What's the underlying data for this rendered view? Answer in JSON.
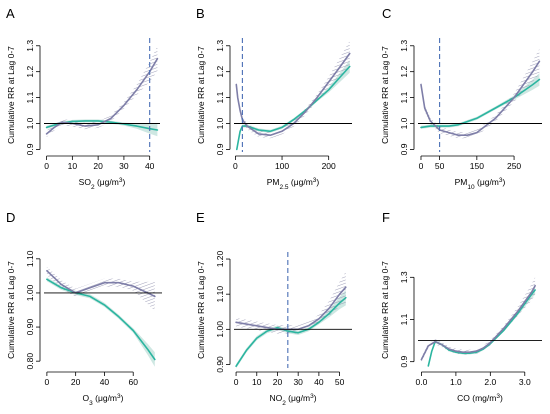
{
  "chart_data": [
    {
      "panel": "A",
      "type": "line",
      "xlabel": "SO",
      "xlabel_sub": "2",
      "xlabel_unit": " (μg/m",
      "ylabel": "Cumulative RR at Lag 0-7",
      "xlim": [
        -1,
        44
      ],
      "ylim": [
        0.89,
        1.33
      ],
      "xticks": [
        0,
        10,
        20,
        30,
        40
      ],
      "yticks": [
        0.9,
        1.0,
        1.1,
        1.2,
        1.3
      ],
      "reference_line": 1.0,
      "vline": 40,
      "series": [
        {
          "color": "#2bb5a0",
          "x": [
            0,
            5,
            10,
            15,
            20,
            25,
            30,
            35,
            40,
            43
          ],
          "y": [
            0.985,
            1.0,
            1.008,
            1.01,
            1.01,
            1.005,
            0.998,
            0.99,
            0.98,
            0.975
          ]
        },
        {
          "color": "#7e7ea8",
          "x": [
            0,
            3,
            6,
            10,
            15,
            20,
            25,
            30,
            35,
            40,
            43
          ],
          "y": [
            0.96,
            0.985,
            1.005,
            1.0,
            0.99,
            0.995,
            1.02,
            1.07,
            1.13,
            1.2,
            1.25
          ]
        }
      ]
    },
    {
      "panel": "B",
      "type": "line",
      "xlabel": "PM",
      "xlabel_sub": "2.5",
      "xlabel_unit": " (μg/m",
      "ylabel": "Cumulative RR at Lag 0-7",
      "xlim": [
        -3,
        250
      ],
      "ylim": [
        0.89,
        1.33
      ],
      "xticks": [
        0,
        100,
        200
      ],
      "yticks": [
        0.9,
        1.0,
        1.1,
        1.2,
        1.3
      ],
      "reference_line": 1.0,
      "vline": 15,
      "series": [
        {
          "color": "#2bb5a0",
          "x": [
            3,
            6,
            10,
            15,
            25,
            50,
            75,
            100,
            125,
            150,
            175,
            200,
            225,
            245
          ],
          "y": [
            0.9,
            0.93,
            0.97,
            0.99,
            0.99,
            0.975,
            0.97,
            0.985,
            1.015,
            1.05,
            1.09,
            1.13,
            1.18,
            1.22
          ]
        },
        {
          "color": "#7e7ea8",
          "x": [
            2,
            5,
            10,
            15,
            25,
            50,
            75,
            100,
            125,
            150,
            175,
            200,
            225,
            245
          ],
          "y": [
            1.15,
            1.1,
            1.05,
            1.015,
            0.99,
            0.96,
            0.955,
            0.97,
            1.0,
            1.045,
            1.1,
            1.16,
            1.22,
            1.27
          ]
        }
      ]
    },
    {
      "panel": "C",
      "type": "line",
      "xlabel": "PM",
      "xlabel_sub": "10",
      "xlabel_unit": " (μg/m",
      "ylabel": "Cumulative RR at Lag 0-7",
      "xlim": [
        -8,
        325
      ],
      "ylim": [
        0.89,
        1.33
      ],
      "xticks": [
        0,
        50,
        150,
        250
      ],
      "yticks": [
        0.9,
        1.0,
        1.1,
        1.2,
        1.3
      ],
      "reference_line": 1.0,
      "vline": 50,
      "series": [
        {
          "color": "#2bb5a0",
          "x": [
            0,
            25,
            50,
            75,
            100,
            150,
            200,
            250,
            300,
            318
          ],
          "y": [
            0.985,
            0.99,
            0.99,
            0.99,
            0.995,
            1.02,
            1.06,
            1.1,
            1.15,
            1.17
          ]
        },
        {
          "color": "#7e7ea8",
          "x": [
            0,
            10,
            25,
            50,
            75,
            100,
            125,
            150,
            200,
            250,
            300,
            318
          ],
          "y": [
            1.15,
            1.06,
            1.01,
            0.975,
            0.965,
            0.955,
            0.955,
            0.965,
            1.02,
            1.1,
            1.2,
            1.24
          ]
        }
      ]
    },
    {
      "panel": "D",
      "type": "line",
      "xlabel": "O",
      "xlabel_sub": "3",
      "xlabel_unit": " (μg/m",
      "ylabel": "Cumulative RR at Lag 0-7",
      "xlim": [
        -2,
        80
      ],
      "ylim": [
        0.78,
        1.12
      ],
      "xticks": [
        0,
        20,
        40,
        60
      ],
      "yticks": [
        0.8,
        0.9,
        1.0,
        1.1
      ],
      "ytick_labels": [
        "0.80",
        "0.90",
        "1.00",
        "1.10"
      ],
      "reference_line": 1.0,
      "series": [
        {
          "color": "#2bb5a0",
          "x": [
            0,
            10,
            20,
            30,
            40,
            50,
            60,
            70,
            75
          ],
          "y": [
            1.04,
            1.015,
            1.0,
            0.99,
            0.965,
            0.93,
            0.89,
            0.835,
            0.805
          ]
        },
        {
          "color": "#7e7ea8",
          "x": [
            0,
            10,
            20,
            30,
            40,
            50,
            60,
            70,
            75
          ],
          "y": [
            1.065,
            1.025,
            1.0,
            1.015,
            1.03,
            1.03,
            1.02,
            1.0,
            0.99
          ]
        }
      ]
    },
    {
      "panel": "E",
      "type": "line",
      "xlabel": "NO",
      "xlabel_sub": "2",
      "xlabel_unit": " (μg/m",
      "ylabel": "Cumulative RR at Lag 0-7",
      "xlim": [
        -1,
        56
      ],
      "ylim": [
        0.89,
        1.22
      ],
      "xticks": [
        0,
        10,
        20,
        30,
        40,
        50
      ],
      "yticks": [
        0.9,
        1.0,
        1.1,
        1.2
      ],
      "ytick_labels": [
        "0.90",
        "1.00",
        "1.10",
        "1.20"
      ],
      "reference_line": 1.0,
      "vline": 25,
      "series": [
        {
          "color": "#2bb5a0",
          "x": [
            0,
            5,
            10,
            15,
            20,
            25,
            30,
            35,
            40,
            45,
            50,
            53
          ],
          "y": [
            0.895,
            0.94,
            0.975,
            0.995,
            1.005,
            0.995,
            0.99,
            1.0,
            1.02,
            1.045,
            1.075,
            1.09
          ]
        },
        {
          "color": "#7e7ea8",
          "x": [
            0,
            5,
            10,
            15,
            20,
            25,
            30,
            35,
            40,
            45,
            50,
            53
          ],
          "y": [
            1.02,
            1.015,
            1.01,
            1.005,
            1.0,
            1.0,
            1.0,
            1.01,
            1.03,
            1.06,
            1.1,
            1.12
          ]
        }
      ]
    },
    {
      "panel": "F",
      "type": "line",
      "xlabel": "CO (mg/m",
      "xlabel_sub": "",
      "xlabel_unit": "",
      "ylabel": "Cumulative RR at Lag 0-7",
      "xlim": [
        -0.1,
        3.5
      ],
      "ylim": [
        0.87,
        1.42
      ],
      "xticks": [
        0.0,
        1.0,
        2.0,
        3.0
      ],
      "xtick_labels": [
        "0.0",
        "1.0",
        "2.0",
        "3.0"
      ],
      "yticks": [
        0.9,
        1.1,
        1.3
      ],
      "reference_line": 1.0,
      "series": [
        {
          "color": "#2bb5a0",
          "x": [
            0.2,
            0.3,
            0.4,
            0.6,
            0.8,
            1.0,
            1.2,
            1.4,
            1.6,
            1.8,
            2.0,
            2.4,
            2.8,
            3.2,
            3.3
          ],
          "y": [
            0.88,
            0.95,
            0.995,
            0.98,
            0.955,
            0.945,
            0.94,
            0.94,
            0.945,
            0.96,
            0.985,
            1.05,
            1.13,
            1.22,
            1.24
          ]
        },
        {
          "color": "#7e7ea8",
          "x": [
            0.0,
            0.2,
            0.4,
            0.6,
            0.8,
            1.0,
            1.2,
            1.4,
            1.6,
            1.8,
            2.0,
            2.4,
            2.8,
            3.2,
            3.3
          ],
          "y": [
            0.91,
            0.975,
            0.995,
            0.98,
            0.96,
            0.95,
            0.945,
            0.945,
            0.95,
            0.965,
            0.99,
            1.06,
            1.14,
            1.23,
            1.26
          ]
        }
      ]
    }
  ]
}
